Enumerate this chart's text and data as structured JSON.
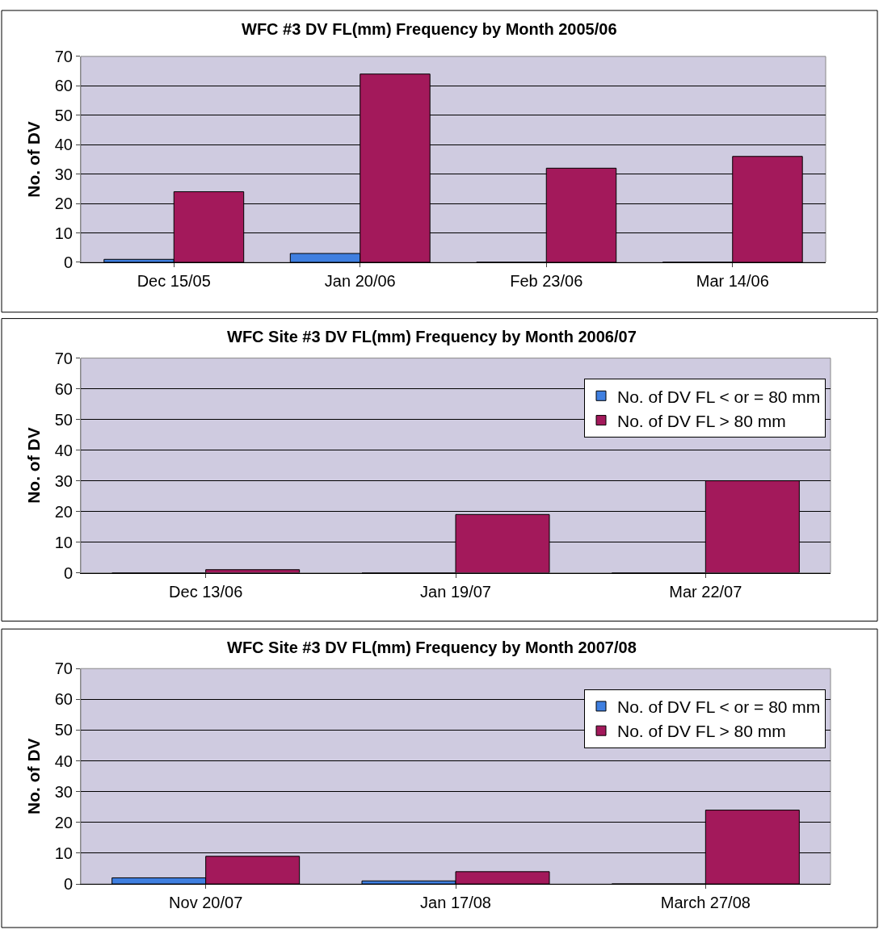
{
  "chart_data": [
    {
      "type": "bar",
      "title": "WFC #3 DV FL(mm) Frequency by Month 2005/06",
      "ylabel": "No. of DV",
      "categories": [
        "Dec 15/05",
        "Jan 20/06",
        "Feb 23/06",
        "Mar 14/06"
      ],
      "series": [
        {
          "color": "#3f7fe0",
          "values": [
            1,
            3,
            0,
            0
          ]
        },
        {
          "color": "#a3195b",
          "values": [
            24,
            64,
            32,
            36
          ]
        }
      ],
      "ylim": [
        0,
        70
      ],
      "yticks": [
        0,
        10,
        20,
        30,
        40,
        50,
        60,
        70
      ],
      "grid": "y",
      "legend": false
    },
    {
      "type": "bar",
      "title": "WFC Site #3 DV FL(mm) Frequency by Month 2006/07",
      "ylabel": "No. of DV",
      "categories": [
        "Dec 13/06",
        "Jan 19/07",
        "Mar 22/07"
      ],
      "series": [
        {
          "name": "No. of DV FL < or = 80 mm",
          "color": "#3f7fe0",
          "values": [
            0,
            0,
            0
          ]
        },
        {
          "name": "No. of DV FL > 80 mm",
          "color": "#a3195b",
          "values": [
            1,
            19,
            30
          ]
        }
      ],
      "ylim": [
        0,
        70
      ],
      "yticks": [
        0,
        10,
        20,
        30,
        40,
        50,
        60,
        70
      ],
      "grid": "y",
      "legend": "top right"
    },
    {
      "type": "bar",
      "title": "WFC Site #3 DV FL(mm) Frequency by Month 2007/08",
      "ylabel": "No. of DV",
      "categories": [
        "Nov 20/07",
        "Jan 17/08",
        "March 27/08"
      ],
      "series": [
        {
          "name": "No. of DV FL < or = 80 mm",
          "color": "#3f7fe0",
          "values": [
            2,
            1,
            0
          ]
        },
        {
          "name": "No. of DV FL > 80 mm",
          "color": "#a3195b",
          "values": [
            9,
            4,
            24
          ]
        }
      ],
      "ylim": [
        0,
        70
      ],
      "yticks": [
        0,
        10,
        20,
        30,
        40,
        50,
        60,
        70
      ],
      "grid": "y",
      "legend": "top right"
    }
  ]
}
